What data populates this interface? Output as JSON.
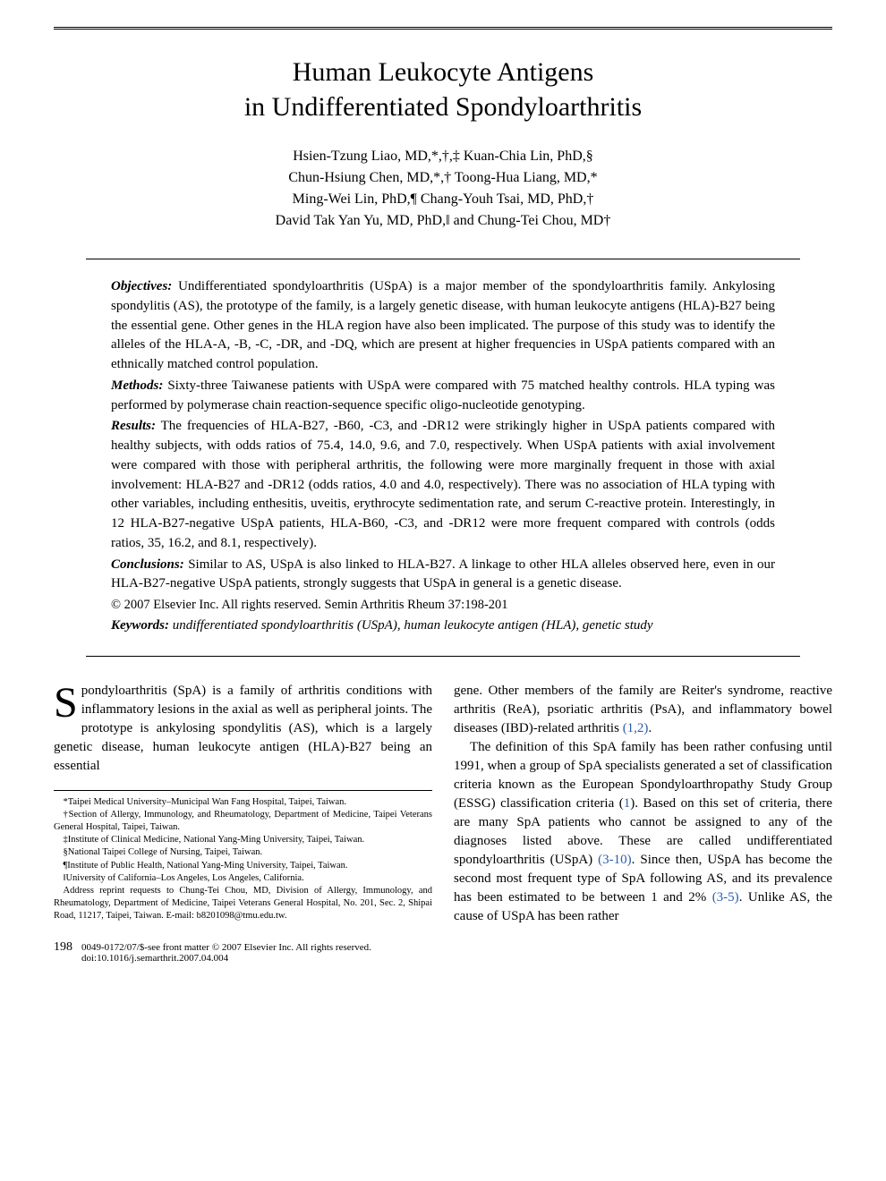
{
  "title_line1": "Human Leukocyte Antigens",
  "title_line2": "in Undifferentiated Spondyloarthritis",
  "authors_line1": "Hsien-Tzung Liao, MD,*,†,‡ Kuan-Chia Lin, PhD,§",
  "authors_line2": "Chun-Hsiung Chen, MD,*,† Toong-Hua Liang, MD,*",
  "authors_line3": "Ming-Wei Lin, PhD,¶ Chang-Youh Tsai, MD, PhD,†",
  "authors_line4": "David Tak Yan Yu, MD, PhD,‖ and Chung-Tei Chou, MD†",
  "abstract": {
    "objectives_label": "Objectives:",
    "objectives": " Undifferentiated spondyloarthritis (USpA) is a major member of the spondyloarthritis family. Ankylosing spondylitis (AS), the prototype of the family, is a largely genetic disease, with human leukocyte antigens (HLA)-B27 being the essential gene. Other genes in the HLA region have also been implicated. The purpose of this study was to identify the alleles of the HLA-A, -B, -C, -DR, and -DQ, which are present at higher frequencies in USpA patients compared with an ethnically matched control population.",
    "methods_label": "Methods:",
    "methods": " Sixty-three Taiwanese patients with USpA were compared with 75 matched healthy controls. HLA typing was performed by polymerase chain reaction-sequence specific oligo-nucleotide genotyping.",
    "results_label": "Results:",
    "results": " The frequencies of HLA-B27, -B60, -C3, and -DR12 were strikingly higher in USpA patients compared with healthy subjects, with odds ratios of 75.4, 14.0, 9.6, and 7.0, respectively. When USpA patients with axial involvement were compared with those with peripheral arthritis, the following were more marginally frequent in those with axial involvement: HLA-B27 and -DR12 (odds ratios, 4.0 and 4.0, respectively). There was no association of HLA typing with other variables, including enthesitis, uveitis, erythrocyte sedimentation rate, and serum C-reactive protein. Interestingly, in 12 HLA-B27-negative USpA patients, HLA-B60, -C3, and -DR12 were more frequent compared with controls (odds ratios, 35, 16.2, and 8.1, respectively).",
    "conclusions_label": "Conclusions:",
    "conclusions": " Similar to AS, USpA is also linked to HLA-B27. A linkage to other HLA alleles observed here, even in our HLA-B27-negative USpA patients, strongly suggests that USpA in general is a genetic disease.",
    "copyright": "© 2007 Elsevier Inc. All rights reserved. Semin Arthritis Rheum 37:198-201",
    "keywords_label": "Keywords:",
    "keywords": " undifferentiated spondyloarthritis (USpA), human leukocyte antigen (HLA), genetic study"
  },
  "body": {
    "dropcap": "S",
    "p1": "pondyloarthritis (SpA) is a family of arthritis conditions with inflammatory lesions in the axial as well as peripheral joints. The prototype is ankylosing spondylitis (AS), which is a largely genetic disease, human leukocyte antigen (HLA)-B27 being an essential",
    "p2_a": "gene. Other members of the family are Reiter's syndrome, reactive arthritis (ReA), psoriatic arthritis (PsA), and inflammatory bowel diseases (IBD)-related arthritis ",
    "p2_link": "(1,2)",
    "p2_b": ".",
    "p3_a": "The definition of this SpA family has been rather confusing until 1991, when a group of SpA specialists generated a set of classification criteria known as the European Spondyloarthropathy Study Group (ESSG) classification criteria (",
    "p3_link1": "1",
    "p3_b": "). Based on this set of criteria, there are many SpA patients who cannot be assigned to any of the diagnoses listed above. These are called undifferentiated spondyloarthritis (USpA) ",
    "p3_link2": "(3-10)",
    "p3_c": ". Since then, USpA has become the second most frequent type of SpA following AS, and its prevalence has been estimated to be between 1 and 2% ",
    "p3_link3": "(3-5)",
    "p3_d": ". Unlike AS, the cause of USpA has been rather"
  },
  "footnotes": {
    "f1": "*Taipei Medical University–Municipal Wan Fang Hospital, Taipei, Taiwan.",
    "f2": "†Section of Allergy, Immunology, and Rheumatology, Department of Medicine, Taipei Veterans General Hospital, Taipei, Taiwan.",
    "f3": "‡Institute of Clinical Medicine, National Yang-Ming University, Taipei, Taiwan.",
    "f4": "§National Taipei College of Nursing, Taipei, Taiwan.",
    "f5": "¶Institute of Public Health, National Yang-Ming University, Taipei, Taiwan.",
    "f6": "‖University of California–Los Angeles, Los Angeles, California.",
    "f7": "Address reprint requests to Chung-Tei Chou, MD, Division of Allergy, Immunology, and Rheumatology, Department of Medicine, Taipei Veterans General Hospital, No. 201, Sec. 2, Shipai Road, 11217, Taipei, Taiwan. E-mail: b8201098@tmu.edu.tw."
  },
  "footer": {
    "page": "198",
    "line1": "0049-0172/07/$-see front matter © 2007 Elsevier Inc. All rights reserved.",
    "line2": "doi:10.1016/j.semarthrit.2007.04.004"
  }
}
